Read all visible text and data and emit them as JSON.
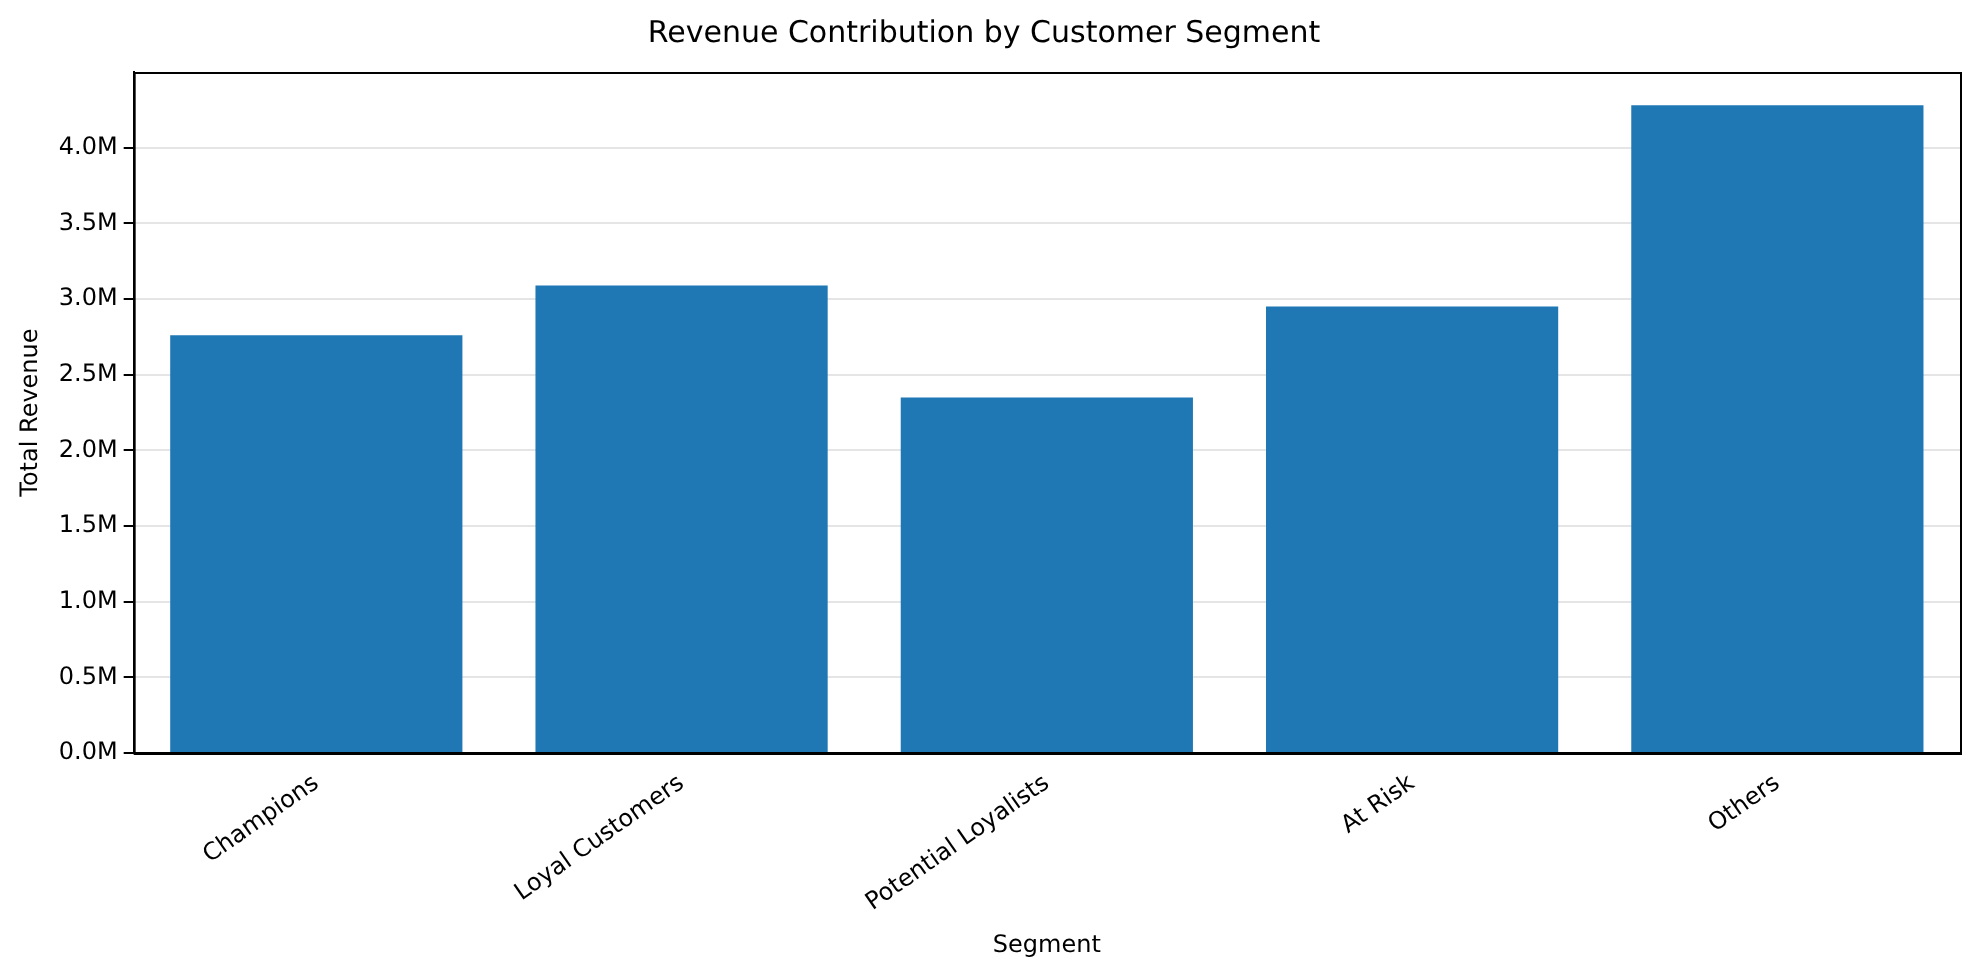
{
  "chart_data": {
    "type": "bar",
    "title": "Revenue Contribution by Customer Segment",
    "xlabel": "Segment",
    "ylabel": "Total Revenue",
    "categories": [
      "Champions",
      "Loyal Customers",
      "Potential Loyalists",
      "At Risk",
      "Others"
    ],
    "values": [
      2760000,
      3090000,
      2350000,
      2950000,
      4280000
    ],
    "color": "#1f77b4",
    "ylim": [
      0,
      4500000
    ],
    "yticks": [
      {
        "value": 0,
        "label": "0.0M"
      },
      {
        "value": 500000,
        "label": "0.5M"
      },
      {
        "value": 1000000,
        "label": "1.0M"
      },
      {
        "value": 1500000,
        "label": "1.5M"
      },
      {
        "value": 2000000,
        "label": "2.0M"
      },
      {
        "value": 2500000,
        "label": "2.5M"
      },
      {
        "value": 3000000,
        "label": "3.0M"
      },
      {
        "value": 3500000,
        "label": "3.5M"
      },
      {
        "value": 4000000,
        "label": "4.0M"
      }
    ],
    "grid": "y"
  }
}
